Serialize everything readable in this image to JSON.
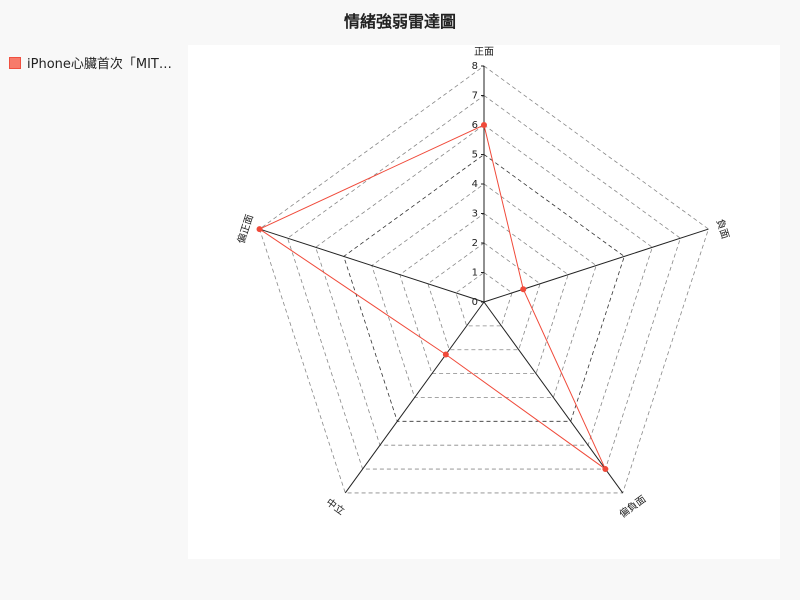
{
  "chart_data": {
    "type": "radar",
    "title": "情緒強弱雷達圖",
    "axes": [
      "正面",
      "負面",
      "偏負面",
      "中立",
      "偏正面"
    ],
    "rlim": [
      0,
      8
    ],
    "ticks": [
      "0",
      "1",
      "2",
      "3",
      "4",
      "5",
      "6",
      "7",
      "8"
    ],
    "series": [
      {
        "name": "iPhone心臟首次「MIT…",
        "values": [
          6,
          1.4,
          7,
          2.2,
          8
        ]
      }
    ],
    "colors": {
      "series": "#f04a3a",
      "fill": "#f77b6b"
    },
    "legend_position": "top-left"
  }
}
